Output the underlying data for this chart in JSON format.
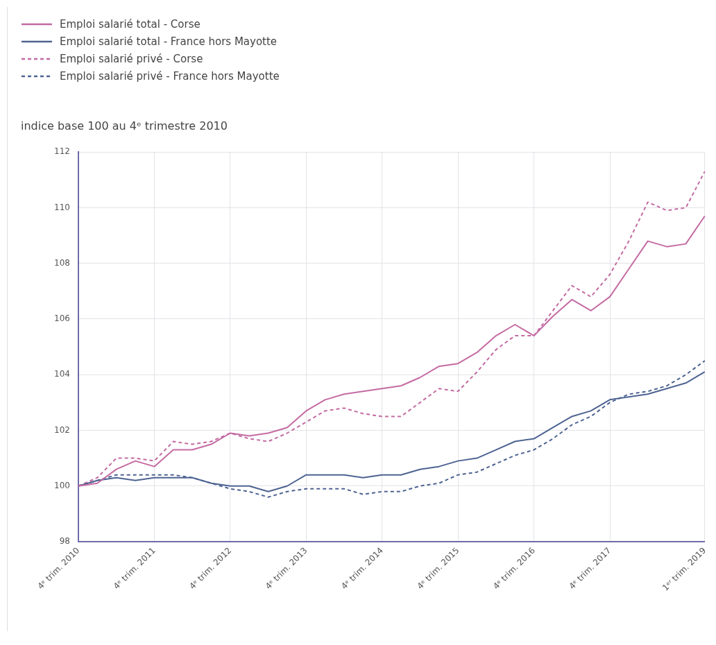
{
  "chart_data": {
    "type": "line",
    "ylabel": "indice base 100 au 4ᵉ trimestre 2010",
    "categories": [
      "4ᵉ trim. 2010",
      null,
      null,
      null,
      "4ᵉ trim. 2011",
      null,
      null,
      null,
      "4ᵉ trim. 2012",
      null,
      null,
      null,
      "4ᵉ trim. 2013",
      null,
      null,
      null,
      "4ᵉ trim. 2014",
      null,
      null,
      null,
      "4ᵉ trim. 2015",
      null,
      null,
      null,
      "4ᵉ trim. 2016",
      null,
      null,
      null,
      "4ᵉ trim. 2017",
      null,
      null,
      null,
      null,
      "1ᵉʳ trim. 2019"
    ],
    "series": [
      {
        "name": "Emploi salarié total - Corse",
        "color": "#c46aa2",
        "line_style": "solid",
        "values": [
          100,
          100.1,
          100.6,
          100.9,
          100.7,
          101.3,
          101.3,
          101.5,
          101.9,
          101.8,
          101.9,
          102.1,
          102.7,
          103.1,
          103.3,
          103.4,
          103.5,
          103.6,
          103.9,
          104.3,
          104.4,
          104.8,
          105.4,
          105.8,
          105.4,
          106.1,
          106.7,
          106.3,
          106.8,
          107.8,
          108.8,
          108.6,
          108.7,
          109.7
        ]
      },
      {
        "name": "Emploi salarié total - France hors Mayotte",
        "color": "#4d6391",
        "line_style": "solid",
        "values": [
          100,
          100.2,
          100.3,
          100.2,
          100.3,
          100.3,
          100.3,
          100.1,
          100.0,
          100.0,
          99.8,
          100.0,
          100.4,
          100.4,
          100.4,
          100.3,
          100.4,
          100.4,
          100.6,
          100.7,
          100.9,
          101.0,
          101.3,
          101.6,
          101.7,
          102.1,
          102.5,
          102.7,
          103.1,
          103.2,
          103.3,
          103.5,
          103.7,
          104.1
        ]
      },
      {
        "name": "Emploi salarié privé - Corse",
        "color": "#c46aa2",
        "line_style": "dashed",
        "values": [
          100,
          100.3,
          101.0,
          101.0,
          100.9,
          101.6,
          101.5,
          101.6,
          101.9,
          101.7,
          101.6,
          101.9,
          102.3,
          102.7,
          102.8,
          102.6,
          102.5,
          102.5,
          103.0,
          103.5,
          103.4,
          104.1,
          104.9,
          105.4,
          105.4,
          106.3,
          107.2,
          106.8,
          107.6,
          108.8,
          110.2,
          109.9,
          110.0,
          111.3
        ]
      },
      {
        "name": "Emploi salarié privé - France hors Mayotte",
        "color": "#4d6391",
        "line_style": "dashed",
        "values": [
          100,
          100.2,
          100.4,
          100.4,
          100.4,
          100.4,
          100.3,
          100.1,
          99.9,
          99.8,
          99.6,
          99.8,
          99.9,
          99.9,
          99.9,
          99.7,
          99.8,
          99.8,
          100.0,
          100.1,
          100.4,
          100.5,
          100.8,
          101.1,
          101.3,
          101.7,
          102.2,
          102.5,
          103.0,
          103.3,
          103.4,
          103.6,
          104.0,
          104.5
        ]
      }
    ],
    "ylim": [
      98,
      112
    ],
    "yticks": [
      98,
      100,
      102,
      104,
      106,
      108,
      110,
      112
    ],
    "grid": true,
    "legend": "top left",
    "marker": "none"
  }
}
